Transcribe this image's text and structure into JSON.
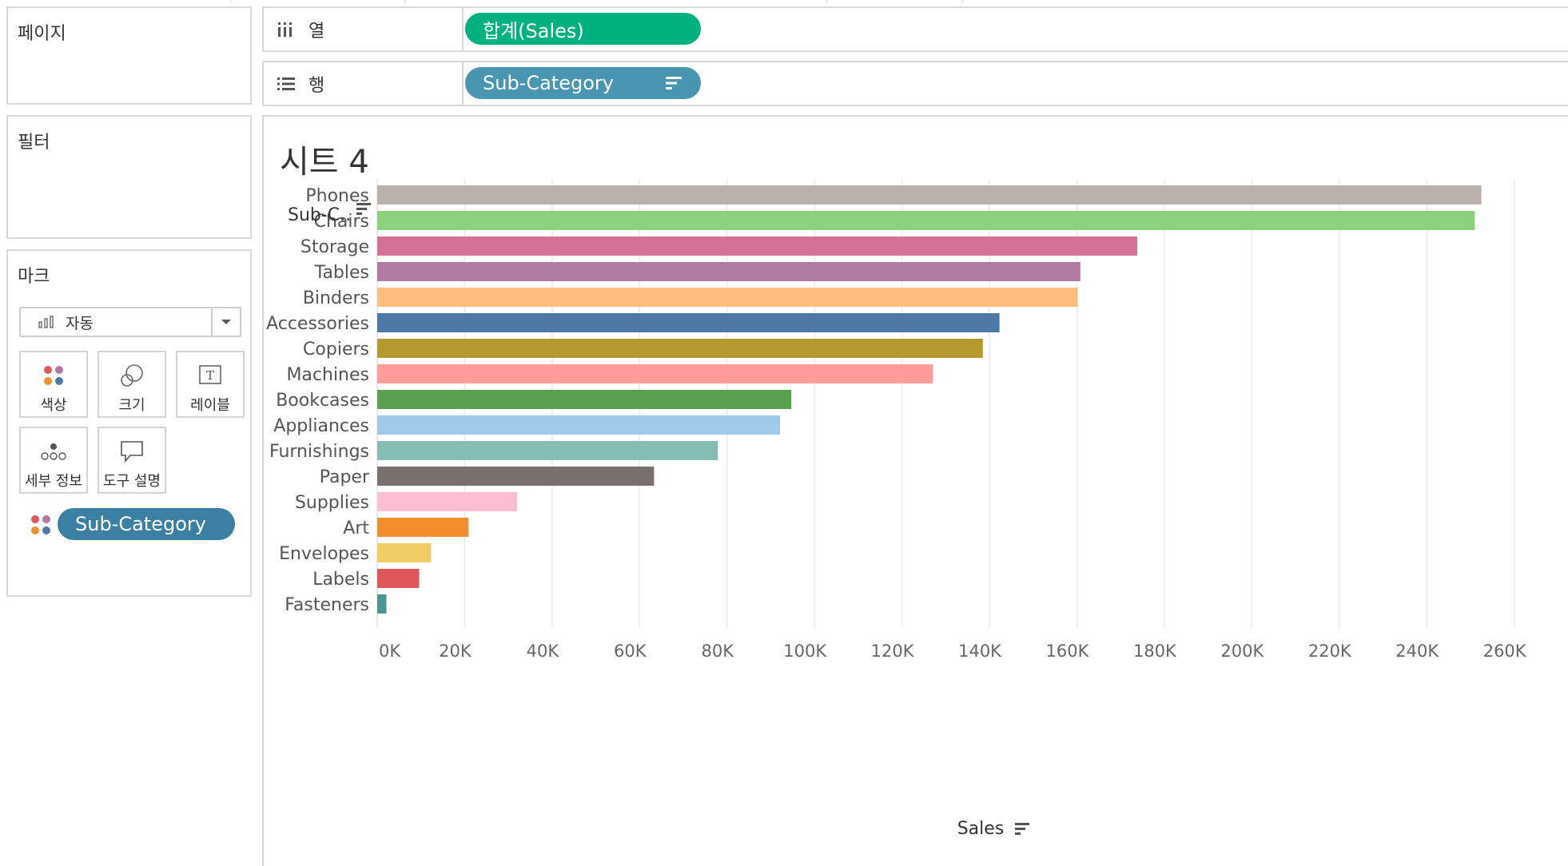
{
  "panels": {
    "pages": "페이지",
    "filters": "필터",
    "marks": "마크"
  },
  "marks": {
    "type_label": "자동",
    "cards": {
      "color": "색상",
      "size": "크기",
      "label": "레이블",
      "detail": "세부 정보",
      "tooltip": "도구 설명"
    },
    "color_pill": "Sub-Category"
  },
  "shelves": {
    "columns_label": "열",
    "rows_label": "행",
    "columns_pill": "합계(Sales)",
    "rows_pill": "Sub-Category"
  },
  "colors": {
    "columns_pill": "#00b180",
    "rows_pill": "#4996b2",
    "color_pill": "#3b7fa3"
  },
  "sheet": {
    "title": "시트 4"
  },
  "chart_data": {
    "type": "bar",
    "orientation": "horizontal",
    "title": "시트 4",
    "ylabel": "Sub-C..",
    "xlabel": "Sales",
    "xlim": [
      0,
      265000
    ],
    "x_ticks": [
      0,
      20000,
      40000,
      60000,
      80000,
      100000,
      120000,
      140000,
      160000,
      180000,
      200000,
      220000,
      240000,
      260000
    ],
    "x_tick_labels": [
      "0K",
      "20K",
      "40K",
      "60K",
      "80K",
      "100K",
      "120K",
      "140K",
      "160K",
      "180K",
      "200K",
      "220K",
      "240K",
      "260K"
    ],
    "grid": true,
    "categories": [
      "Phones",
      "Chairs",
      "Storage",
      "Tables",
      "Binders",
      "Accessories",
      "Copiers",
      "Machines",
      "Bookcases",
      "Appliances",
      "Furnishings",
      "Paper",
      "Supplies",
      "Art",
      "Envelopes",
      "Labels",
      "Fasteners"
    ],
    "values": [
      252500,
      251000,
      173800,
      160800,
      160200,
      142300,
      138500,
      127100,
      94700,
      92100,
      77900,
      63300,
      32000,
      20900,
      12300,
      9600,
      2100
    ],
    "colors": [
      "#bab0ac",
      "#8cd17d",
      "#d37295",
      "#b07aa1",
      "#ffbe7d",
      "#4e79a7",
      "#b6992d",
      "#ff9d9a",
      "#59a14f",
      "#a0cbe8",
      "#86bcb6",
      "#79706e",
      "#fabfd2",
      "#f28e2b",
      "#f1ce63",
      "#e15759",
      "#499894"
    ]
  }
}
